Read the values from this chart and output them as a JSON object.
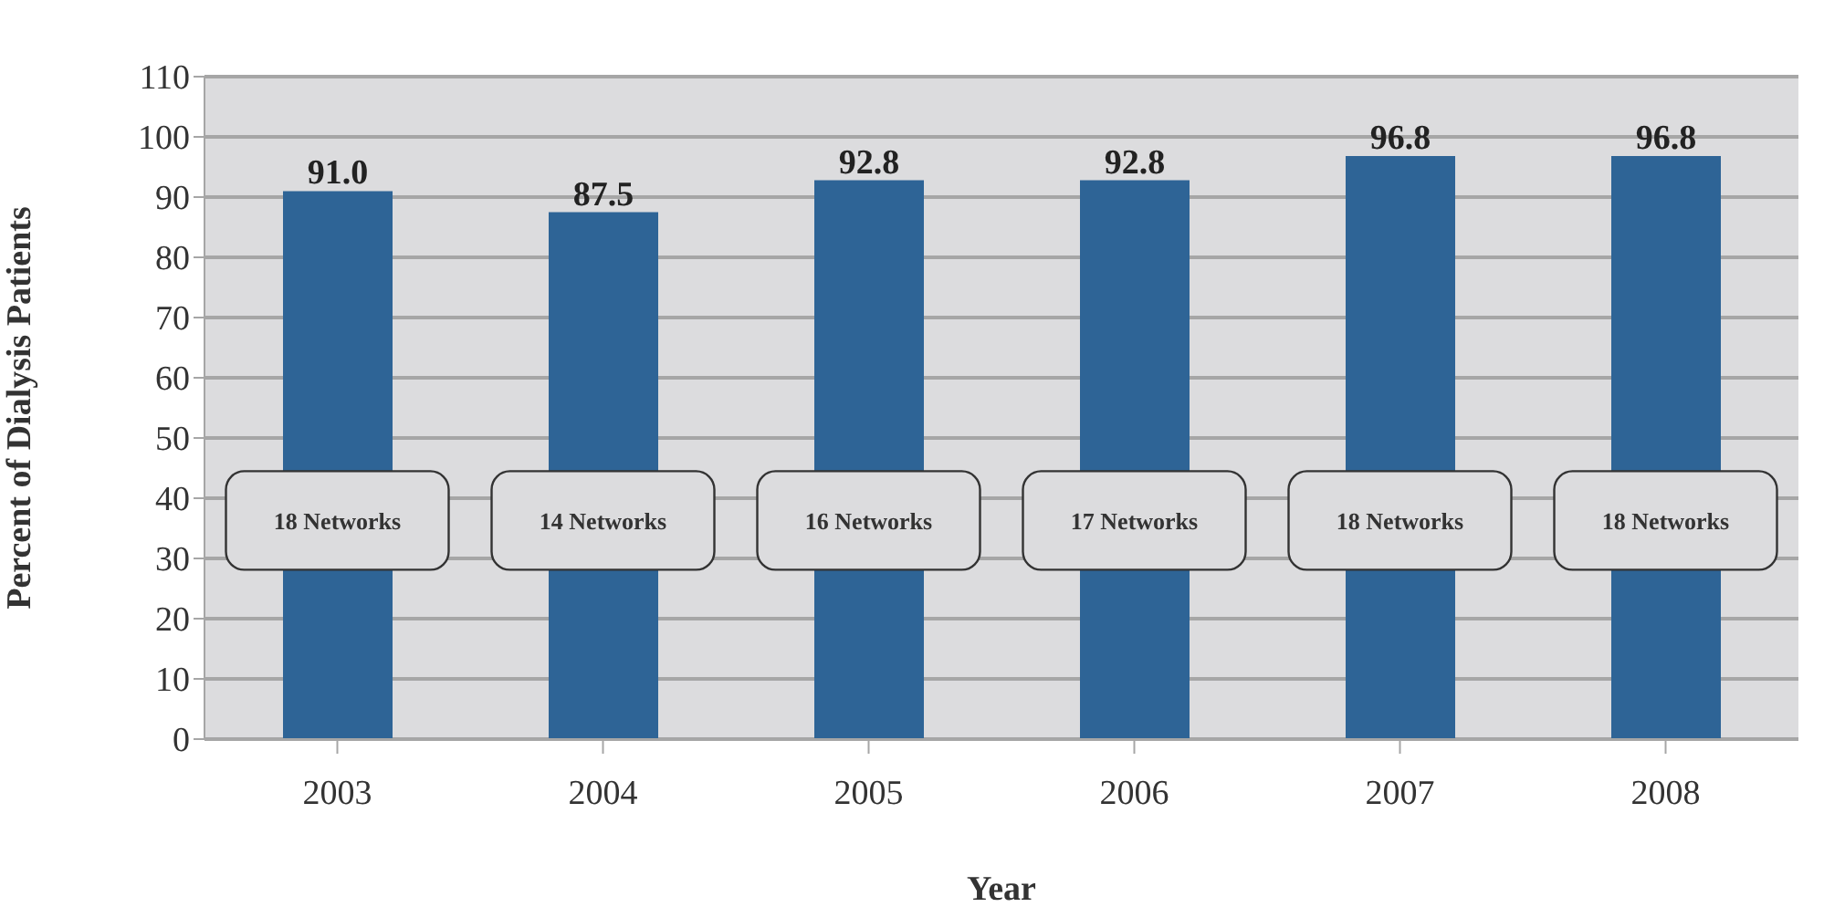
{
  "chart_data": {
    "type": "bar",
    "xlabel": "Year",
    "ylabel": "Percent of Dialysis Patients",
    "categories": [
      "2003",
      "2004",
      "2005",
      "2006",
      "2007",
      "2008"
    ],
    "values": [
      91.0,
      87.5,
      92.8,
      92.8,
      96.8,
      96.8
    ],
    "value_labels": [
      "91.0",
      "87.5",
      "92.8",
      "92.8",
      "96.8",
      "96.8"
    ],
    "color": "#2e6496",
    "ylim": [
      0,
      110
    ],
    "yticks": [
      0,
      10,
      20,
      30,
      40,
      50,
      60,
      70,
      80,
      90,
      100,
      110
    ],
    "grid": "y",
    "annotations": [
      "18 Networks",
      "14 Networks",
      "16 Networks",
      "17 Networks",
      "18 Networks",
      "18 Networks"
    ]
  }
}
